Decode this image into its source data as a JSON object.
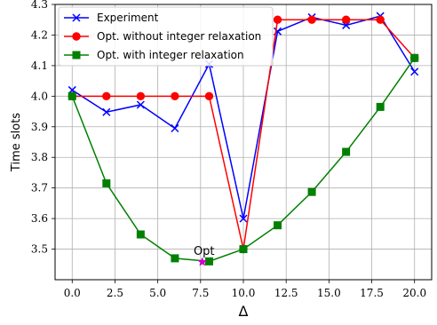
{
  "chart_data": {
    "type": "line",
    "xlabel": "Δ",
    "ylabel": "Time slots",
    "xlim": [
      -1.0,
      21.0
    ],
    "ylim": [
      3.4,
      4.3
    ],
    "xticks": [
      "0.0",
      "2.5",
      "5.0",
      "7.5",
      "10.0",
      "12.5",
      "15.0",
      "17.5",
      "20.0"
    ],
    "yticks": [
      "3.5",
      "3.6",
      "3.7",
      "3.8",
      "3.9",
      "4.0",
      "4.1",
      "4.2",
      "4.3"
    ],
    "grid": true,
    "legend_position": "top-left",
    "series": [
      {
        "name": "Experiment",
        "color": "#0000ff",
        "marker": "x",
        "x": [
          0,
          2,
          4,
          6,
          8,
          10,
          12,
          14,
          16,
          18,
          20
        ],
        "y": [
          4.02,
          3.948,
          3.972,
          3.895,
          4.105,
          3.6,
          4.212,
          4.258,
          4.232,
          4.262,
          4.08
        ]
      },
      {
        "name": "Opt. without integer relaxation",
        "color": "#ff0000",
        "marker": "circle",
        "x": [
          0,
          2,
          4,
          6,
          8,
          10,
          12,
          14,
          16,
          18,
          20
        ],
        "y": [
          4.0,
          4.0,
          4.0,
          4.0,
          4.0,
          3.5,
          4.25,
          4.25,
          4.25,
          4.25,
          4.125
        ]
      },
      {
        "name": "Opt. with integer relaxation",
        "color": "#008000",
        "marker": "square",
        "x": [
          0,
          2,
          4,
          6,
          8,
          10,
          12,
          14,
          16,
          18,
          20
        ],
        "y": [
          4.0,
          3.715,
          3.548,
          3.47,
          3.46,
          3.5,
          3.578,
          3.687,
          3.818,
          3.965,
          4.125
        ]
      }
    ],
    "annotations": [
      {
        "text": "Opt",
        "x": 7.6,
        "y": 3.458,
        "marker": "star",
        "color": "#cc00cc"
      }
    ]
  }
}
